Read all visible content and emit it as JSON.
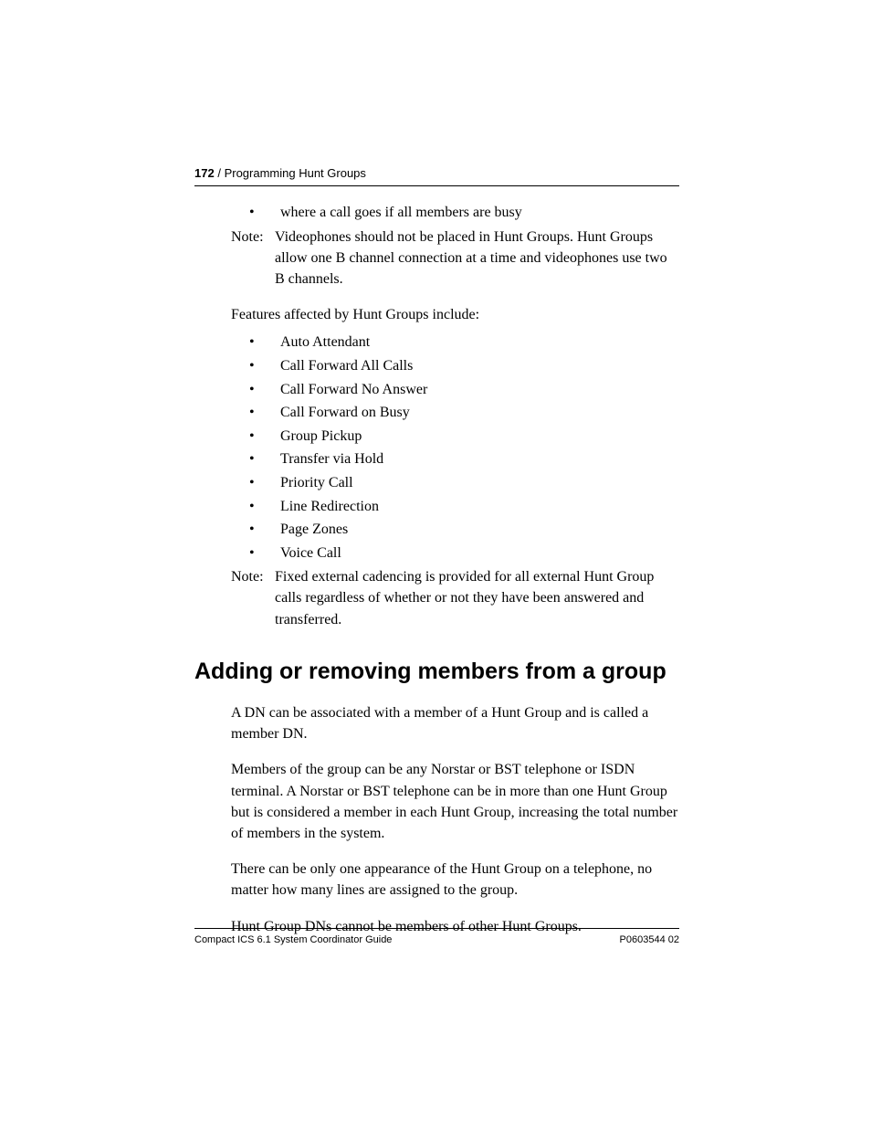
{
  "header": {
    "page_number": "172",
    "section_title": "Programming Hunt Groups"
  },
  "intro_bullet": "where a call goes if all members are busy",
  "note1": {
    "label": "Note:",
    "text": "Videophones should not be placed in Hunt Groups. Hunt Groups allow one B channel connection at a time and videophones use two B channels."
  },
  "features_intro": "Features affected by Hunt Groups include:",
  "features": [
    "Auto Attendant",
    "Call Forward All Calls",
    "Call Forward No Answer",
    "Call Forward on Busy",
    "Group Pickup",
    "Transfer via Hold",
    "Priority Call",
    "Line Redirection",
    "Page Zones",
    "Voice Call"
  ],
  "note2": {
    "label": "Note:",
    "text": "Fixed external cadencing is provided for all external Hunt Group calls regardless of whether or not they have been answered and transferred."
  },
  "section_heading": "Adding or removing members from a group",
  "body_paragraphs": [
    "A DN can be associated with a member of a Hunt Group and is called a member DN.",
    "Members of the group can be any Norstar or BST telephone or ISDN terminal. A Norstar or BST telephone can be in more than one Hunt Group but is considered a member in each Hunt Group, increasing the total number of members in the system.",
    "There can be only one appearance of the Hunt Group on a telephone, no matter how many lines are assigned to the group.",
    "Hunt Group DNs cannot be members of other Hunt Groups."
  ],
  "footer": {
    "left": "Compact ICS 6.1 System Coordinator Guide",
    "right": "P0603544  02"
  }
}
